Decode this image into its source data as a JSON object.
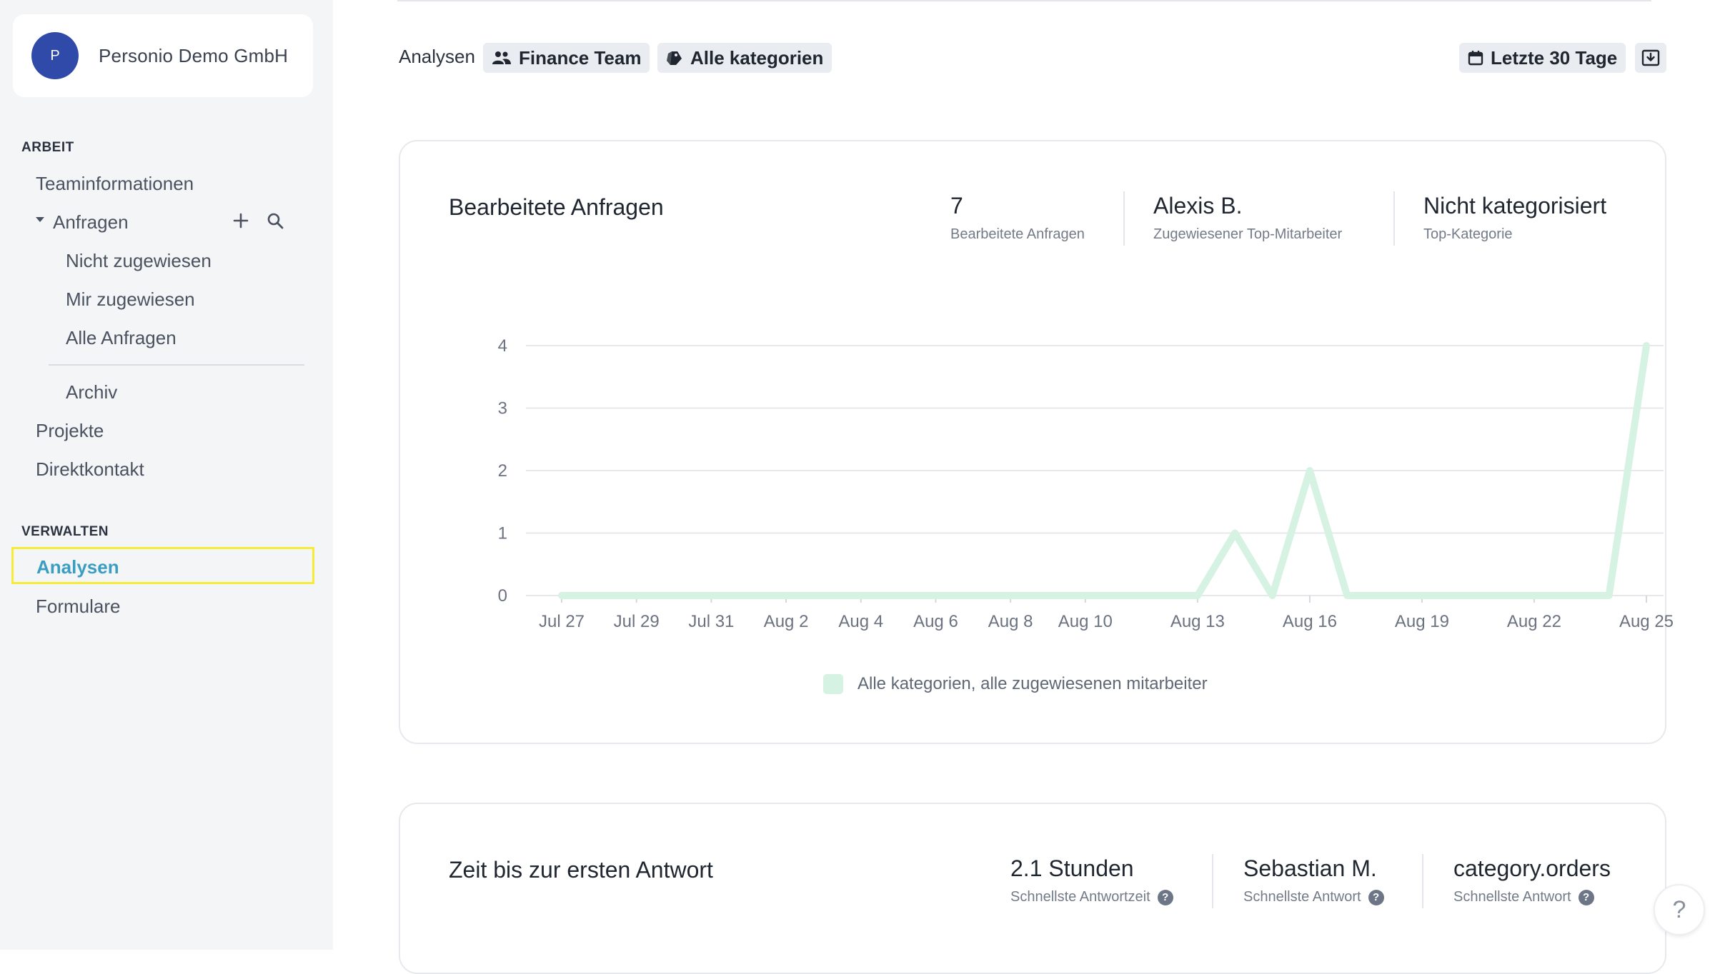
{
  "sidebar": {
    "org": {
      "avatar_letter": "P",
      "name": "Personio Demo GmbH"
    },
    "sections": {
      "arbeit": "ARBEIT",
      "verwalten": "VERWALTEN"
    },
    "items": {
      "teaminformationen": "Teaminformationen",
      "anfragen": "Anfragen",
      "nicht_zugewiesen": "Nicht zugewiesen",
      "mir_zugewiesen": "Mir zugewiesen",
      "alle_anfragen": "Alle Anfragen",
      "archiv": "Archiv",
      "projekte": "Projekte",
      "direktkontakt": "Direktkontakt",
      "analysen": "Analysen",
      "formulare": "Formulare"
    }
  },
  "header": {
    "breadcrumb": "Analysen",
    "team_filter": "Finance Team",
    "category_filter": "Alle kategorien",
    "date_range": "Letzte 30 Tage",
    "icons": {
      "team": "people-icon",
      "category": "tags-icon",
      "calendar": "calendar-icon",
      "download": "download-icon"
    }
  },
  "card1": {
    "title": "Bearbeitete Anfragen",
    "stats": [
      {
        "value": "7",
        "label": "Bearbeitete Anfragen"
      },
      {
        "value": "Alexis B.",
        "label": "Zugewiesener Top-Mitarbeiter"
      },
      {
        "value": "Nicht kategorisiert",
        "label": "Top-Kategorie"
      }
    ],
    "legend": "Alle kategorien, alle zugewiesenen mitarbeiter"
  },
  "card2": {
    "title": "Zeit bis zur ersten Antwort",
    "stats": [
      {
        "value": "2.1 Stunden",
        "label": "Schnellste Antwortzeit"
      },
      {
        "value": "Sebastian M.",
        "label": "Schnellste Antwort"
      },
      {
        "value": "category.orders",
        "label": "Schnellste Antwort"
      }
    ]
  },
  "help_label": "?",
  "colors": {
    "accent": "#3a9ec3",
    "highlight": "#f6ec37",
    "series": "#d5f2e3",
    "avatar": "#2f4aa8"
  },
  "chart_data": {
    "type": "line",
    "title": "Bearbeitete Anfragen",
    "xlabel": "",
    "ylabel": "",
    "x": [
      "Jul 27",
      "Jul 28",
      "Jul 29",
      "Jul 30",
      "Jul 31",
      "Aug 1",
      "Aug 2",
      "Aug 3",
      "Aug 4",
      "Aug 5",
      "Aug 6",
      "Aug 7",
      "Aug 8",
      "Aug 9",
      "Aug 10",
      "Aug 11",
      "Aug 12",
      "Aug 13",
      "Aug 14",
      "Aug 15",
      "Aug 16",
      "Aug 17",
      "Aug 18",
      "Aug 19",
      "Aug 20",
      "Aug 21",
      "Aug 22",
      "Aug 23",
      "Aug 24",
      "Aug 25"
    ],
    "x_tick_labels": [
      "Jul 27",
      "Jul 29",
      "Jul 31",
      "Aug 2",
      "Aug 4",
      "Aug 6",
      "Aug 8",
      "Aug 10",
      "Aug 13",
      "Aug 16",
      "Aug 19",
      "Aug 22",
      "Aug 25"
    ],
    "series": [
      {
        "name": "Alle kategorien, alle zugewiesenen mitarbeiter",
        "values": [
          0,
          0,
          0,
          0,
          0,
          0,
          0,
          0,
          0,
          0,
          0,
          0,
          0,
          0,
          0,
          0,
          0,
          0,
          1,
          0,
          2,
          0,
          0,
          0,
          0,
          0,
          0,
          0,
          0,
          4
        ]
      }
    ],
    "y_ticks": [
      0,
      1,
      2,
      3,
      4
    ],
    "ylim": [
      0,
      4
    ],
    "grid": true,
    "legend_position": "bottom-center"
  }
}
